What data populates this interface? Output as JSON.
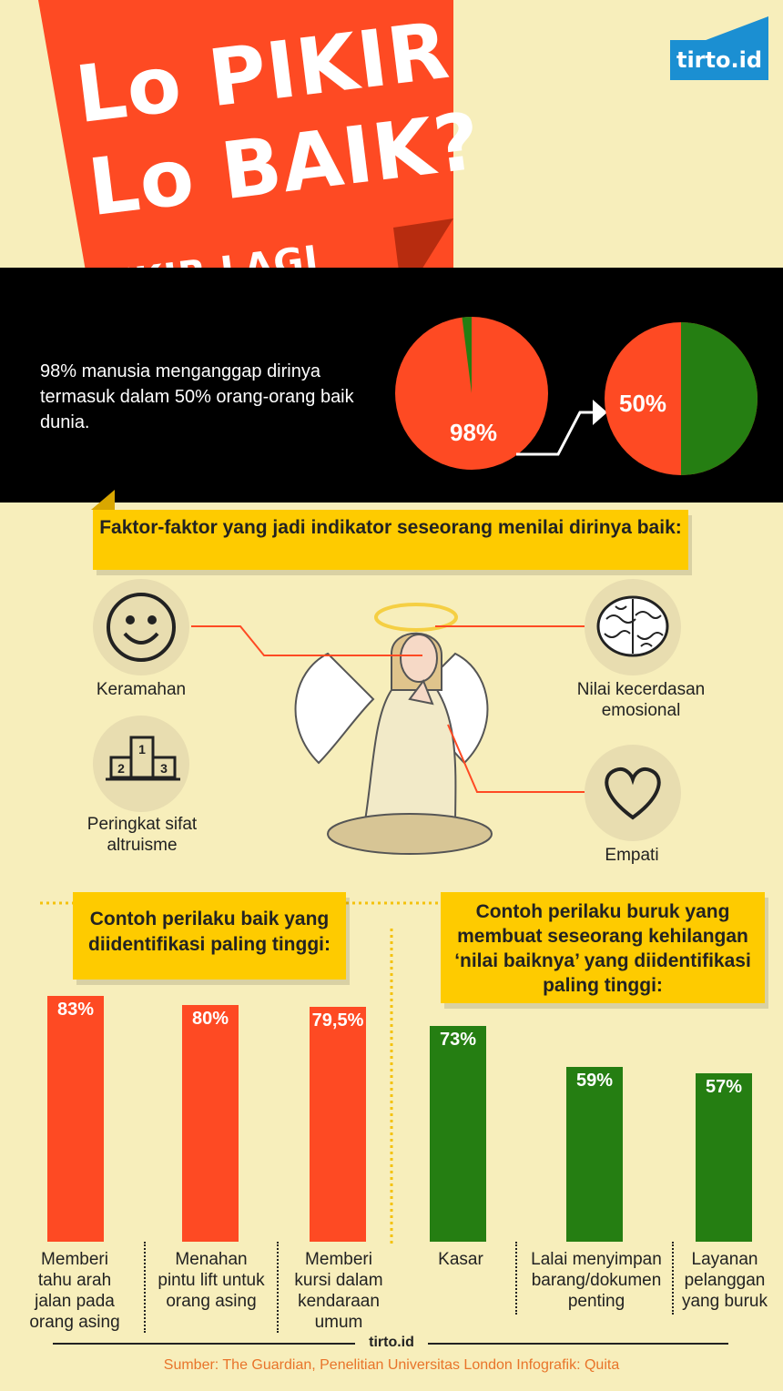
{
  "title": {
    "line1": "Lo PIKIR",
    "line2": "Lo BAIK?",
    "line3": "PIKIR LAGI"
  },
  "brand": {
    "logo": "tirto.id",
    "footer_logo": "tirto.id"
  },
  "intro": {
    "text": "98% manusia menganggap dirinya termasuk dalam 50% orang-orang baik dunia."
  },
  "colors": {
    "red": "#fe4a23",
    "green": "#257e12",
    "yellow": "#fecb00",
    "cream": "#f7eebb"
  },
  "chart_data": [
    {
      "type": "pie",
      "values": [
        98,
        2
      ],
      "data_label": "98%"
    },
    {
      "type": "pie",
      "values": [
        50,
        50
      ],
      "data_label": "50%"
    },
    {
      "type": "bar",
      "title": "Contoh perilaku baik yang diidentifikasi paling tinggi:",
      "categories": [
        "Memberi tahu arah jalan pada orang asing",
        "Menahan pintu lift untuk orang asing",
        "Memberi kursi dalam kendaraan umum"
      ],
      "values": [
        83,
        80,
        79.5
      ],
      "data_labels": [
        "83%",
        "80%",
        "79,5%"
      ],
      "ylim": [
        0,
        100
      ]
    },
    {
      "type": "bar",
      "title": "Contoh perilaku buruk yang membuat seseorang kehilangan ‘nilai baiknya’ yang diidentifikasi paling tinggi:",
      "categories": [
        "Kasar",
        "Lalai menyimpan barang/dokumen penting",
        "Layanan pelanggan yang buruk"
      ],
      "values": [
        73,
        59,
        57
      ],
      "data_labels": [
        "73%",
        "59%",
        "57%"
      ],
      "ylim": [
        0,
        100
      ]
    }
  ],
  "factors": {
    "title": "Faktor-faktor yang jadi indikator seseorang menilai dirinya baik:",
    "items": [
      {
        "label": "Keramahan",
        "icon": "smiley-icon"
      },
      {
        "label": "Peringkat sifat altruisme",
        "icon": "podium-icon"
      },
      {
        "label": "Nilai kecerdasan emosional",
        "icon": "brain-icon"
      },
      {
        "label": "Empati",
        "icon": "heart-icon"
      }
    ],
    "podium_numbers": [
      "1",
      "2",
      "3"
    ]
  },
  "source": "Sumber: The Guardian, Penelitian Universitas London   Infografik: Quita"
}
